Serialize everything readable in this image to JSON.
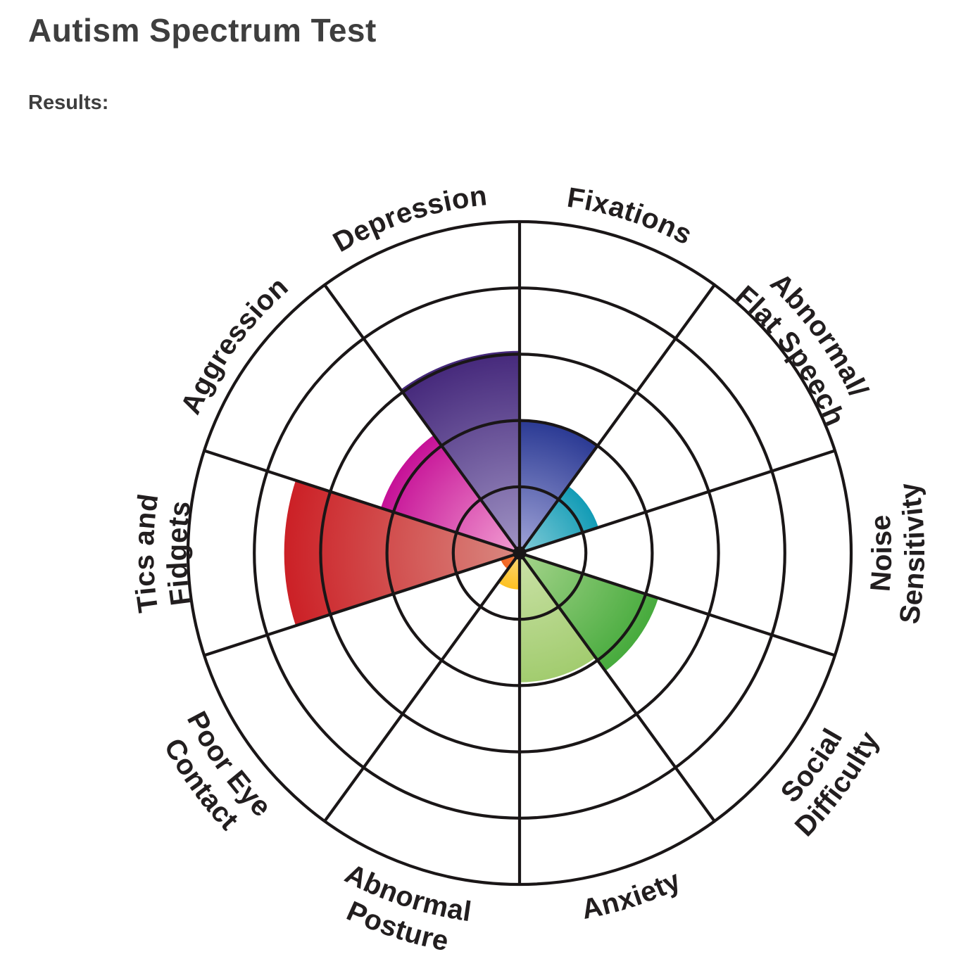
{
  "page": {
    "title": "Autism Spectrum Test",
    "results_label": "Results:"
  },
  "chart_data": {
    "type": "polar_rose",
    "title": "Autism Spectrum Test",
    "units": "rings",
    "rings": 5,
    "ring_values": [
      1,
      2,
      3,
      4,
      5
    ],
    "sector_width_deg": 36,
    "grid_color": "#1a1617",
    "label_color": "#221e1f",
    "legend": "none",
    "categories": [
      {
        "id": "fixations",
        "label_lines": [
          "Fixations"
        ],
        "start_angle_deg": 0,
        "value": 2.0,
        "flipped": false,
        "color_inner": "#a2a5d8",
        "color_outer": "#2b3a94"
      },
      {
        "id": "flat-speech",
        "label_lines": [
          "Abnormal/",
          "Flat Speech"
        ],
        "start_angle_deg": 36,
        "value": 1.25,
        "flipped": false,
        "color_inner": "#84ccd8",
        "color_outer": "#139cb6"
      },
      {
        "id": "noise",
        "label_lines": [
          "Noise",
          "Sensitivity"
        ],
        "start_angle_deg": 72,
        "value": 0,
        "flipped": true,
        "color_inner": "",
        "color_outer": ""
      },
      {
        "id": "social",
        "label_lines": [
          "Social",
          "Difficulty"
        ],
        "start_angle_deg": 108,
        "value": 2.2,
        "flipped": true,
        "color_inner": "#a6d48c",
        "color_outer": "#47ab3d"
      },
      {
        "id": "anxiety",
        "label_lines": [
          "Anxiety"
        ],
        "start_angle_deg": 144,
        "value": 1.95,
        "flipped": true,
        "color_inner": "#cbe2a8",
        "color_outer": "#a2cc6f"
      },
      {
        "id": "posture",
        "label_lines": [
          "Abnormal",
          "Posture"
        ],
        "start_angle_deg": 180,
        "value": 0.55,
        "flipped": true,
        "color_inner": "#fcd87d",
        "color_outer": "#fdc122"
      },
      {
        "id": "eye-contact",
        "label_lines": [
          "Poor Eye",
          "Contact"
        ],
        "start_angle_deg": 216,
        "value": 0.3,
        "flipped": true,
        "color_inner": "#f5854a",
        "color_outer": "#f16522"
      },
      {
        "id": "tics",
        "label_lines": [
          "Tics and",
          "Fidgets"
        ],
        "start_angle_deg": 252,
        "value": 3.55,
        "flipped": false,
        "color_inner": "#d98981",
        "color_outer": "#cc2026"
      },
      {
        "id": "aggression",
        "label_lines": [
          "Aggression"
        ],
        "start_angle_deg": 288,
        "value": 2.2,
        "flipped": false,
        "color_inner": "#f29fd2",
        "color_outer": "#c61197"
      },
      {
        "id": "depression",
        "label_lines": [
          "Depression"
        ],
        "start_angle_deg": 324,
        "value": 3.05,
        "flipped": false,
        "color_inner": "#a195c5",
        "color_outer": "#45287b"
      }
    ]
  }
}
